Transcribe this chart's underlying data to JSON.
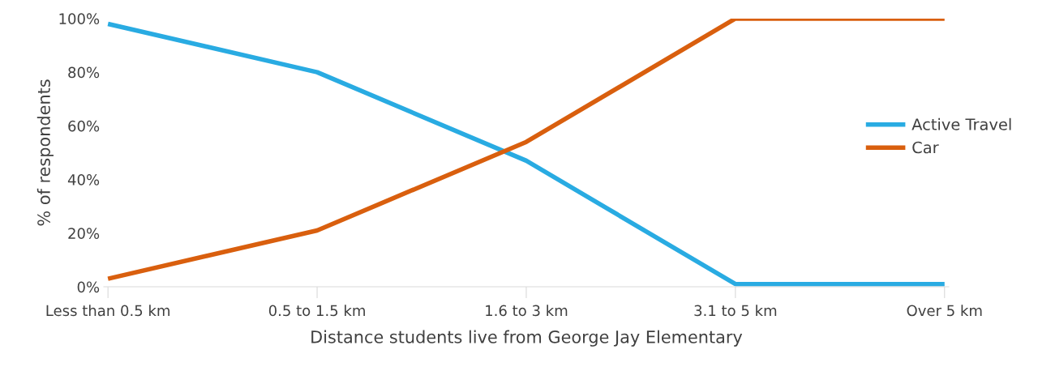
{
  "chart_data": {
    "type": "line",
    "xlabel": "Distance students live from George Jay Elementary",
    "ylabel": "% of respondents",
    "categories": [
      "Less than 0.5 km",
      "0.5 to 1.5 km",
      "1.6 to 3 km",
      "3.1 to 5 km",
      "Over 5 km"
    ],
    "series": [
      {
        "name": "Active Travel",
        "color": "#29abe2",
        "values": [
          98,
          80,
          47,
          1,
          1
        ]
      },
      {
        "name": "Car",
        "color": "#d95f0e",
        "values": [
          3,
          21,
          54,
          100,
          100
        ]
      }
    ],
    "ylim": [
      0,
      100
    ],
    "yticks": [
      {
        "value": 0,
        "label": "0%"
      },
      {
        "value": 20,
        "label": "20%"
      },
      {
        "value": 40,
        "label": "40%"
      },
      {
        "value": 60,
        "label": "60%"
      },
      {
        "value": 80,
        "label": "80%"
      },
      {
        "value": 100,
        "label": "100%"
      }
    ],
    "grid": false,
    "legend": "right",
    "marker": "none",
    "line_style": "solid"
  }
}
